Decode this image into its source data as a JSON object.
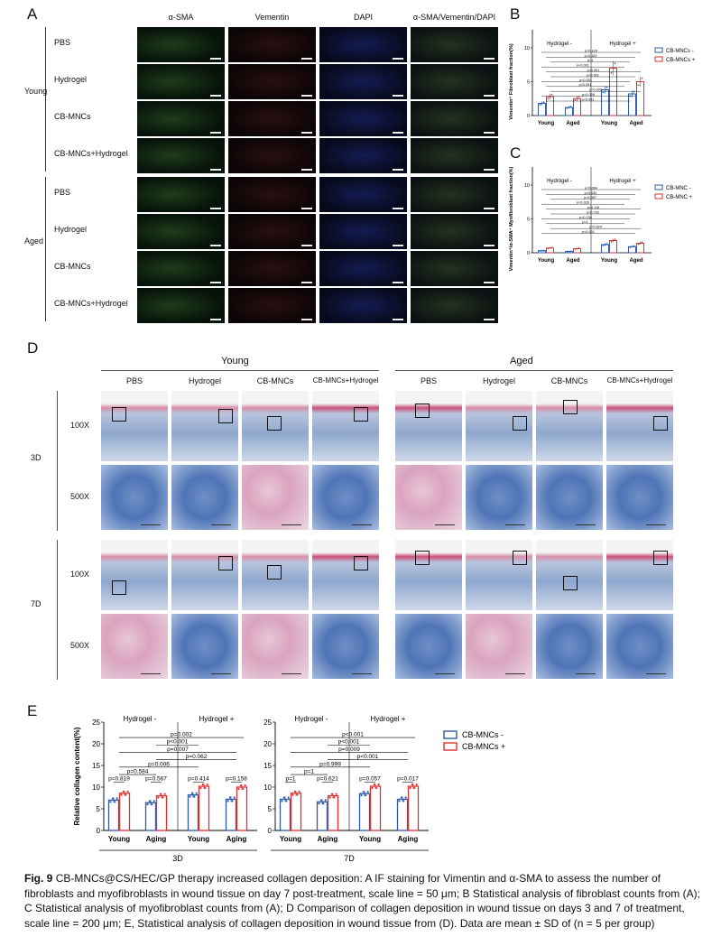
{
  "panelA": {
    "label": "A",
    "columns": [
      "α-SMA",
      "Vementin",
      "DAPI",
      "α-SMA/Vementin/DAPI"
    ],
    "groups": [
      {
        "name": "Young",
        "rows": [
          "PBS",
          "Hydrogel",
          "CB-MNCs",
          "CB-MNCs+Hydrogel"
        ]
      },
      {
        "name": "Aged",
        "rows": [
          "PBS",
          "Hydrogel",
          "CB-MNCs",
          "CB-MNCs+Hydrogel"
        ]
      }
    ]
  },
  "panelD": {
    "label": "D",
    "groups": [
      "Young",
      "Aged"
    ],
    "columns": [
      "PBS",
      "Hydrogel",
      "CB-MNCs",
      "CB-MNCs+Hydrogel",
      "PBS",
      "Hydrogel",
      "CB-MNCs",
      "CB-MNCs+Hydrogel"
    ],
    "timepoints": [
      "3D",
      "7D"
    ],
    "magnifications": [
      "100X",
      "500X"
    ]
  },
  "colors": {
    "blue": "#2e5aa8",
    "red": "#e0302e"
  },
  "chart_data": [
    {
      "panel": "B",
      "type": "bar",
      "title": "",
      "ylabel": "Vimentin⁺ Fibroblast fraction(%)",
      "categories": [
        "Young",
        "Aged",
        "Young",
        "Aged"
      ],
      "group_labels": [
        "Hydrogel -",
        "Hydrogel +"
      ],
      "ylim": [
        0,
        10
      ],
      "yticks": [
        0,
        5,
        10
      ],
      "series": [
        {
          "name": "CB-MNCs -",
          "values": [
            1.8,
            1.2,
            3.8,
            3.2
          ]
        },
        {
          "name": "CB-MNCs +",
          "values": [
            2.8,
            2.5,
            7.0,
            5.0
          ]
        }
      ],
      "legend_position": "right",
      "annotations": [
        "p=0.120",
        "p=0.103",
        "p=1",
        "p<0.001",
        "p<0.001",
        "p<0.001",
        "p<0.001",
        "p<0.001",
        "p=0.003",
        "p=0.028",
        "p<0.001"
      ]
    },
    {
      "panel": "C",
      "type": "bar",
      "title": "",
      "ylabel": "Vimentin⁺/α-SMA⁺ Myofibroblast fraction(%)",
      "categories": [
        "Young",
        "Aged",
        "Young",
        "Aged"
      ],
      "group_labels": [
        "Hydrogel -",
        "Hydrogel +"
      ],
      "ylim": [
        0,
        10
      ],
      "yticks": [
        0,
        5,
        10
      ],
      "series": [
        {
          "name": "CB-MNC -",
          "values": [
            0.3,
            0.2,
            1.2,
            0.9
          ]
        },
        {
          "name": "CB-MNC +",
          "values": [
            0.7,
            0.6,
            1.8,
            1.4
          ]
        }
      ],
      "legend_position": "right",
      "annotations": [
        "p=0.064",
        "p=0.030",
        "p=0.087",
        "p=0.029",
        "p=0.116",
        "p=0.742",
        "p=0.134",
        "p=1",
        "p=0.624",
        "p<0.001"
      ]
    },
    {
      "panel": "E",
      "type": "bar",
      "timepoint": "3D",
      "title": "",
      "ylabel": "Relative collagen content(%)",
      "categories": [
        "Young",
        "Aging",
        "Young",
        "Aging"
      ],
      "group_labels": [
        "Hydrogel -",
        "Hydrogel +"
      ],
      "ylim": [
        0,
        25
      ],
      "yticks": [
        0,
        5,
        10,
        15,
        20,
        25
      ],
      "series": [
        {
          "name": "CB-MNCs -",
          "values": [
            7.0,
            6.4,
            8.2,
            7.2
          ]
        },
        {
          "name": "CB-MNCs +",
          "values": [
            8.6,
            8.0,
            10.2,
            10.0
          ]
        }
      ],
      "annotations": [
        "p=0.819",
        "p=0.567",
        "p=0.414",
        "p=0.158",
        "p=0.584",
        "p=0.006",
        "p=0.062",
        "p=0.007",
        "p<0.001",
        "p=0.002"
      ]
    },
    {
      "panel": "E",
      "type": "bar",
      "timepoint": "7D",
      "title": "",
      "ylabel": "",
      "categories": [
        "Young",
        "Aging",
        "Young",
        "Aging"
      ],
      "group_labels": [
        "Hydrogel -",
        "Hydrogel +"
      ],
      "ylim": [
        0,
        25
      ],
      "yticks": [
        0,
        5,
        10,
        15,
        20,
        25
      ],
      "series": [
        {
          "name": "CB-MNCs -",
          "values": [
            7.2,
            6.6,
            8.5,
            7.2
          ]
        },
        {
          "name": "CB-MNCs +",
          "values": [
            8.6,
            8.0,
            10.2,
            10.2
          ]
        }
      ],
      "legend": [
        "CB-MNCs -",
        "CB-MNCs +"
      ],
      "annotations": [
        "p=1",
        "p=0.621",
        "p=0.057",
        "p=0.017",
        "p=1",
        "p=0.999",
        "p<0.001",
        "p=0.009",
        "p<0.001",
        "p<0.001"
      ]
    }
  ],
  "panelE": {
    "label": "E",
    "timepoints": [
      "3D",
      "7D"
    ]
  },
  "panelB": {
    "label": "B"
  },
  "panelC": {
    "label": "C"
  },
  "caption": {
    "fig": "Fig. 9",
    "text": "CB-MNCs@CS/HEC/GP therapy increased collagen deposition: A IF staining for Vimentin and α-SMA to assess the number of fibroblasts and myofibroblasts in wound tissue on day 7 post-treatment, scale line = 50 μm; B Statistical analysis of fibroblast counts from (A); C Statistical analysis of myofibroblast counts from (A); D Comparison of collagen deposition in wound tissue on days 3 and 7 of treatment, scale line = 200 μm; E, Statistical analysis of collagen deposition in wound tissue from (D). Data are mean ± SD of (n = 5 per group)"
  }
}
